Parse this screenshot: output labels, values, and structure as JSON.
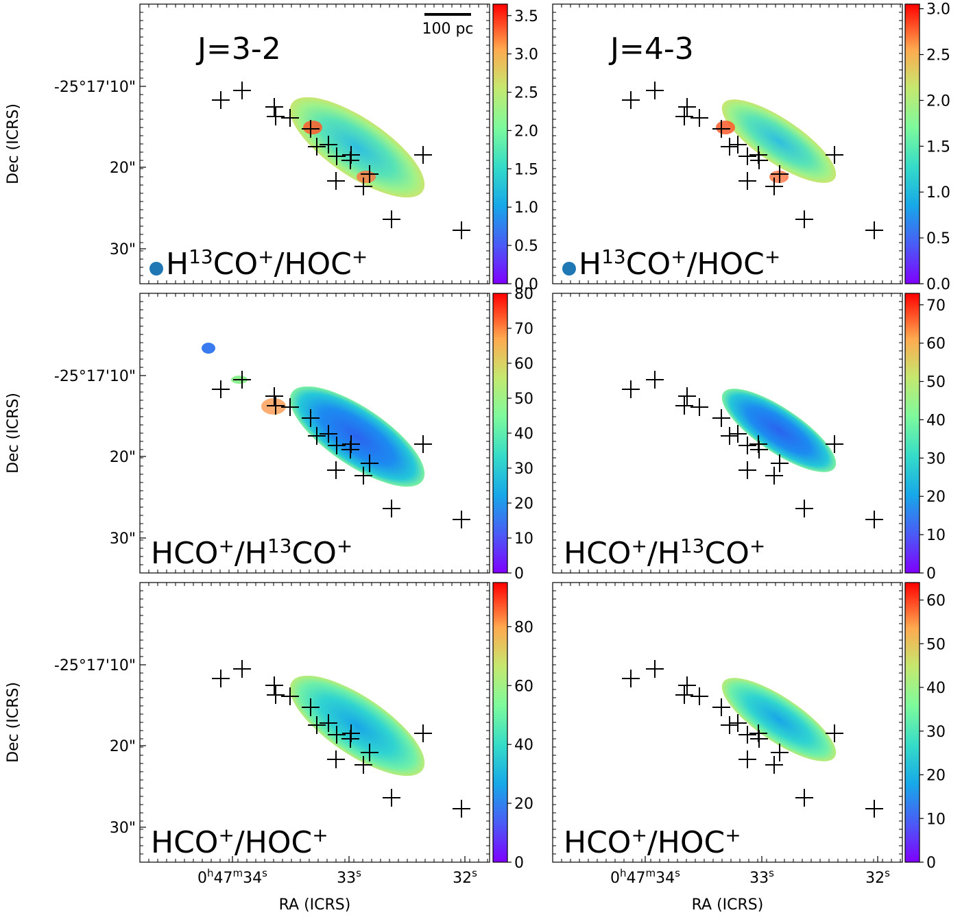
{
  "chart_data": [
    {
      "type": "heatmap",
      "panel_label": "J=3-2",
      "ratio_label": {
        "base": "H",
        "sup1": "13",
        "mid": "CO",
        "sup2": "+",
        "tail": "/HOC",
        "sup3": "+"
      },
      "beam": true,
      "scalebar": "100 pc",
      "colorbar": {
        "ticks": [
          "0.0",
          "0.5",
          "1.0",
          "1.5",
          "2.0",
          "2.5",
          "3.0",
          "3.5"
        ],
        "range": [
          0,
          3.65
        ]
      },
      "emission": "hot",
      "ylabel": "Dec (ICRS)",
      "yticks": [
        "-25°17'10\"",
        "20\"",
        "30\""
      ],
      "xlabel": ""
    },
    {
      "type": "heatmap",
      "panel_label": "J=4-3",
      "ratio_label": {
        "base": "H",
        "sup1": "13",
        "mid": "CO",
        "sup2": "+",
        "tail": "/HOC",
        "sup3": "+"
      },
      "beam": true,
      "scalebar": "",
      "colorbar": {
        "ticks": [
          "0.0",
          "0.5",
          "1.0",
          "1.5",
          "2.0",
          "2.5",
          "3.0"
        ],
        "range": [
          0,
          3.05
        ]
      },
      "emission": "hot",
      "ylabel": "",
      "yticks": [],
      "xlabel": ""
    },
    {
      "type": "heatmap",
      "panel_label": "",
      "ratio_label": {
        "base": "HCO",
        "sup1": "+",
        "mid": "/H",
        "sup2": "13",
        "tail": "CO",
        "sup3": "+"
      },
      "beam": false,
      "scalebar": "",
      "colorbar": {
        "ticks": [
          "0",
          "10",
          "20",
          "30",
          "40",
          "50",
          "60",
          "70",
          "80"
        ],
        "range": [
          0,
          80
        ]
      },
      "emission": "cold",
      "ylabel": "Dec (ICRS)",
      "yticks": [
        "-25°17'10\"",
        "20\"",
        "30\""
      ],
      "xlabel": ""
    },
    {
      "type": "heatmap",
      "panel_label": "",
      "ratio_label": {
        "base": "HCO",
        "sup1": "+",
        "mid": "/H",
        "sup2": "13",
        "tail": "CO",
        "sup3": "+"
      },
      "beam": false,
      "scalebar": "",
      "colorbar": {
        "ticks": [
          "0",
          "10",
          "20",
          "30",
          "40",
          "50",
          "60",
          "70"
        ],
        "range": [
          0,
          73
        ]
      },
      "emission": "cold",
      "ylabel": "",
      "yticks": [],
      "xlabel": ""
    },
    {
      "type": "heatmap",
      "panel_label": "",
      "ratio_label": {
        "base": "HCO",
        "sup1": "+",
        "mid": "/HOC",
        "sup2": "+",
        "tail": "",
        "sup3": ""
      },
      "beam": false,
      "scalebar": "",
      "colorbar": {
        "ticks": [
          "0",
          "20",
          "40",
          "60",
          "80"
        ],
        "range": [
          0,
          95
        ]
      },
      "emission": "mid",
      "ylabel": "Dec (ICRS)",
      "yticks": [
        "-25°17'10\"",
        "20\"",
        "30\""
      ],
      "xlabel": "RA (ICRS)",
      "xticks": [
        {
          "pre": "0",
          "s1": "h",
          "m1": "47",
          "s2": "m",
          "m2": "34",
          "s3": "s"
        },
        {
          "pre": "",
          "s1": "",
          "m1": "",
          "s2": "",
          "m2": "33",
          "s3": "s"
        },
        {
          "pre": "",
          "s1": "",
          "m1": "",
          "s2": "",
          "m2": "32",
          "s3": "s"
        }
      ]
    },
    {
      "type": "heatmap",
      "panel_label": "",
      "ratio_label": {
        "base": "HCO",
        "sup1": "+",
        "mid": "/HOC",
        "sup2": "+",
        "tail": "",
        "sup3": ""
      },
      "beam": false,
      "scalebar": "",
      "colorbar": {
        "ticks": [
          "0",
          "10",
          "20",
          "30",
          "40",
          "50",
          "60"
        ],
        "range": [
          0,
          64
        ]
      },
      "emission": "mid",
      "ylabel": "",
      "yticks": [],
      "xlabel": "RA (ICRS)",
      "xticks": [
        {
          "pre": "0",
          "s1": "h",
          "m1": "47",
          "s2": "m",
          "m2": "34",
          "s3": "s"
        },
        {
          "pre": "",
          "s1": "",
          "m1": "",
          "s2": "",
          "m2": "33",
          "s3": "s"
        },
        {
          "pre": "",
          "s1": "",
          "m1": "",
          "s2": "",
          "m2": "32",
          "s3": "s"
        }
      ]
    }
  ]
}
